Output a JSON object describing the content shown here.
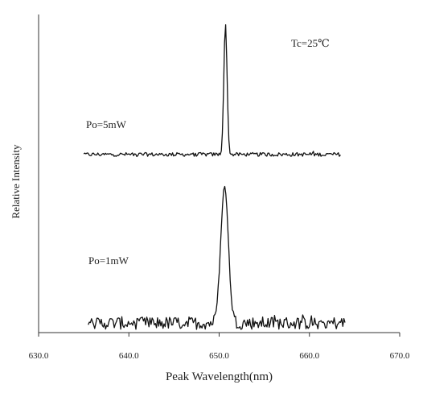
{
  "chart_data": {
    "type": "line",
    "title": "",
    "xlabel": "Peak Wavelength(nm)",
    "ylabel": "Relative Intensity",
    "xlim": [
      630.0,
      670.0
    ],
    "x_ticks": [
      "630.0",
      "640.0",
      "650.0",
      "660.0",
      "670.0"
    ],
    "x_tick_values": [
      630,
      640,
      650,
      660,
      670
    ],
    "ylim": [
      0,
      1
    ],
    "y_ticks": [],
    "grid": false,
    "legend": "none",
    "line_color": "#111111",
    "annotations": [
      {
        "id": "temperature",
        "text": "Tc=25℃"
      },
      {
        "id": "upper-trace-label",
        "text": "Po=5mW"
      },
      {
        "id": "lower-trace-label",
        "text": "Po=1mW"
      }
    ],
    "series": [
      {
        "x_range": [
          635.0,
          663.5
        ],
        "peak_x": 650.7,
        "baseline": 0.56,
        "peak": 0.97,
        "peak_width": 0.18,
        "noise": 0.006
      },
      {
        "x_range": [
          635.5,
          664.0
        ],
        "peak_x": 650.6,
        "baseline": 0.03,
        "peak": 0.46,
        "peak_width": 0.42,
        "noise": 0.02
      }
    ]
  }
}
